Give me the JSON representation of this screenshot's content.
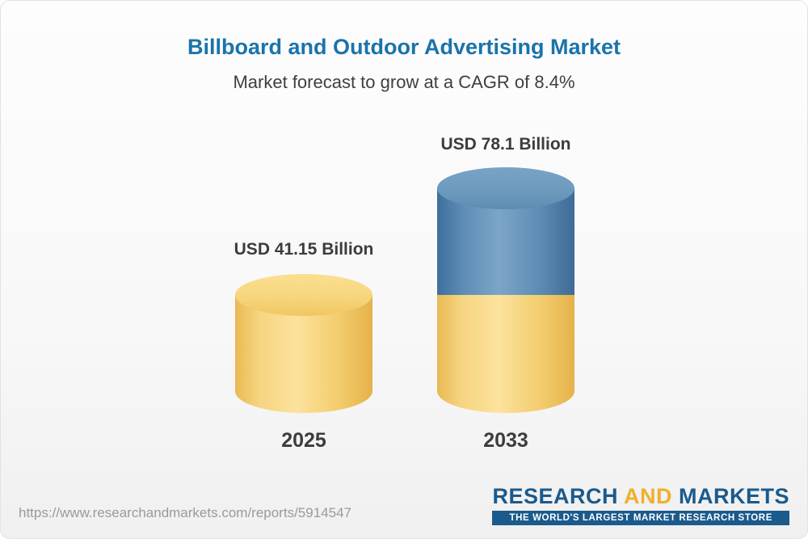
{
  "header": {
    "title": "Billboard and Outdoor Advertising Market",
    "subtitle": "Market forecast to grow at a CAGR of 8.4%"
  },
  "chart_data": {
    "type": "bar",
    "title": "Billboard and Outdoor Advertising Market",
    "subtitle": "Market forecast to grow at a CAGR of 8.4%",
    "unit": "USD Billion",
    "categories": [
      "2025",
      "2033"
    ],
    "values": [
      41.15,
      78.1
    ],
    "value_labels": [
      "USD 41.15 Billion",
      "USD 78.1 Billion"
    ],
    "cagr": "8.4%",
    "ylim": [
      0,
      78.1
    ],
    "colors": {
      "base_segment": "#f3cd6e",
      "growth_segment": "#4e7ea9",
      "title_text": "#1a73ab"
    }
  },
  "footer": {
    "url": "https://www.researchandmarkets.com/reports/5914547",
    "logo": {
      "research": "RESEARCH",
      "and": "AND",
      "markets": "MARKETS",
      "tagline": "THE WORLD'S LARGEST MARKET RESEARCH STORE"
    }
  }
}
